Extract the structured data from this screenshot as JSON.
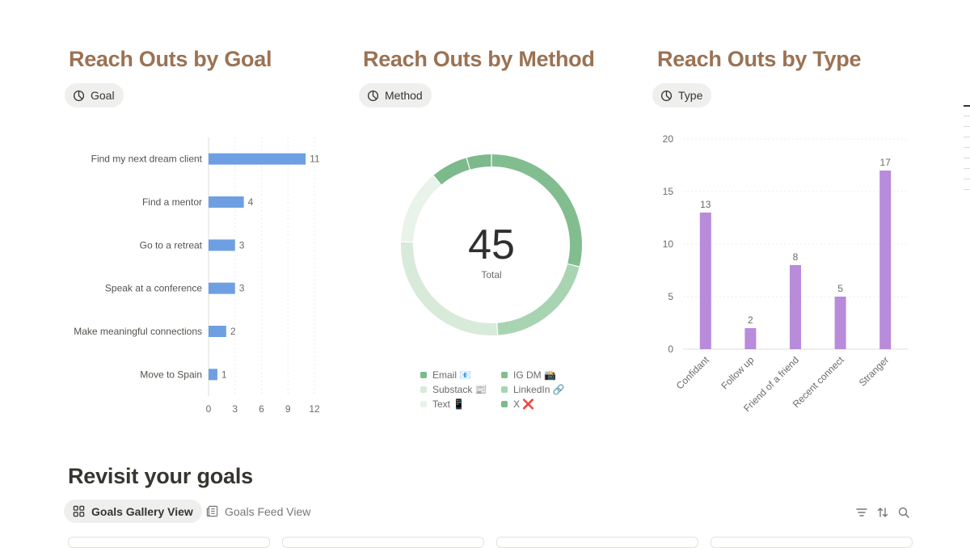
{
  "sections": [
    {
      "title": "Reach Outs by Goal",
      "view_label": "Goal"
    },
    {
      "title": "Reach Outs by Method",
      "view_label": "Method"
    },
    {
      "title": "Reach Outs by Type",
      "view_label": "Type"
    }
  ],
  "colors": {
    "title": "#9b7253",
    "goal_bar": "#6f9fe3",
    "type_bar": "#b98bdb",
    "method_slices": [
      "#82bd90",
      "#a8d4b1",
      "#d8ead9",
      "#e8f3e9",
      "#7cb98b",
      "#7cb98b"
    ]
  },
  "chart_data": [
    {
      "type": "bar",
      "orientation": "horizontal",
      "categories": [
        "Find my next dream client",
        "Find a mentor",
        "Go to a retreat",
        "Speak at a conference",
        "Make meaningful connections",
        "Move to Spain"
      ],
      "values": [
        11,
        4,
        3,
        3,
        2,
        1
      ],
      "xlim": [
        0,
        12
      ],
      "xticks": [
        "0",
        "3",
        "6",
        "9",
        "12"
      ],
      "grid": true
    },
    {
      "type": "pie",
      "donut": true,
      "center_value": "45",
      "center_label": "Total",
      "legend": [
        "Email 📧",
        "IG DM 📸",
        "Substack 📰",
        "LinkedIn 🔗",
        "Text 📱",
        "X ❌"
      ],
      "slices": [
        {
          "label": "IG DM 📸",
          "value": 13
        },
        {
          "label": "LinkedIn 🔗",
          "value": 9
        },
        {
          "label": "Substack 📰",
          "value": 12
        },
        {
          "label": "Email 📧",
          "value": 6
        },
        {
          "label": "Text 📱",
          "value": 3
        },
        {
          "label": "X ❌",
          "value": 2
        }
      ]
    },
    {
      "type": "bar",
      "categories": [
        "Confidant",
        "Follow up",
        "Friend of a friend",
        "Recent connect",
        "Stranger"
      ],
      "values": [
        13,
        2,
        8,
        5,
        17
      ],
      "ylim": [
        0,
        20
      ],
      "yticks": [
        "0",
        "5",
        "10",
        "15",
        "20"
      ],
      "grid": true
    }
  ],
  "revisit": {
    "title": "Revisit your goals",
    "tabs": [
      {
        "label": "Goals Gallery View",
        "icon": "gallery-icon",
        "active": true
      },
      {
        "label": "Goals Feed View",
        "icon": "feed-icon",
        "active": false
      }
    ],
    "tools": [
      "filter-icon",
      "sort-icon",
      "search-icon"
    ]
  }
}
